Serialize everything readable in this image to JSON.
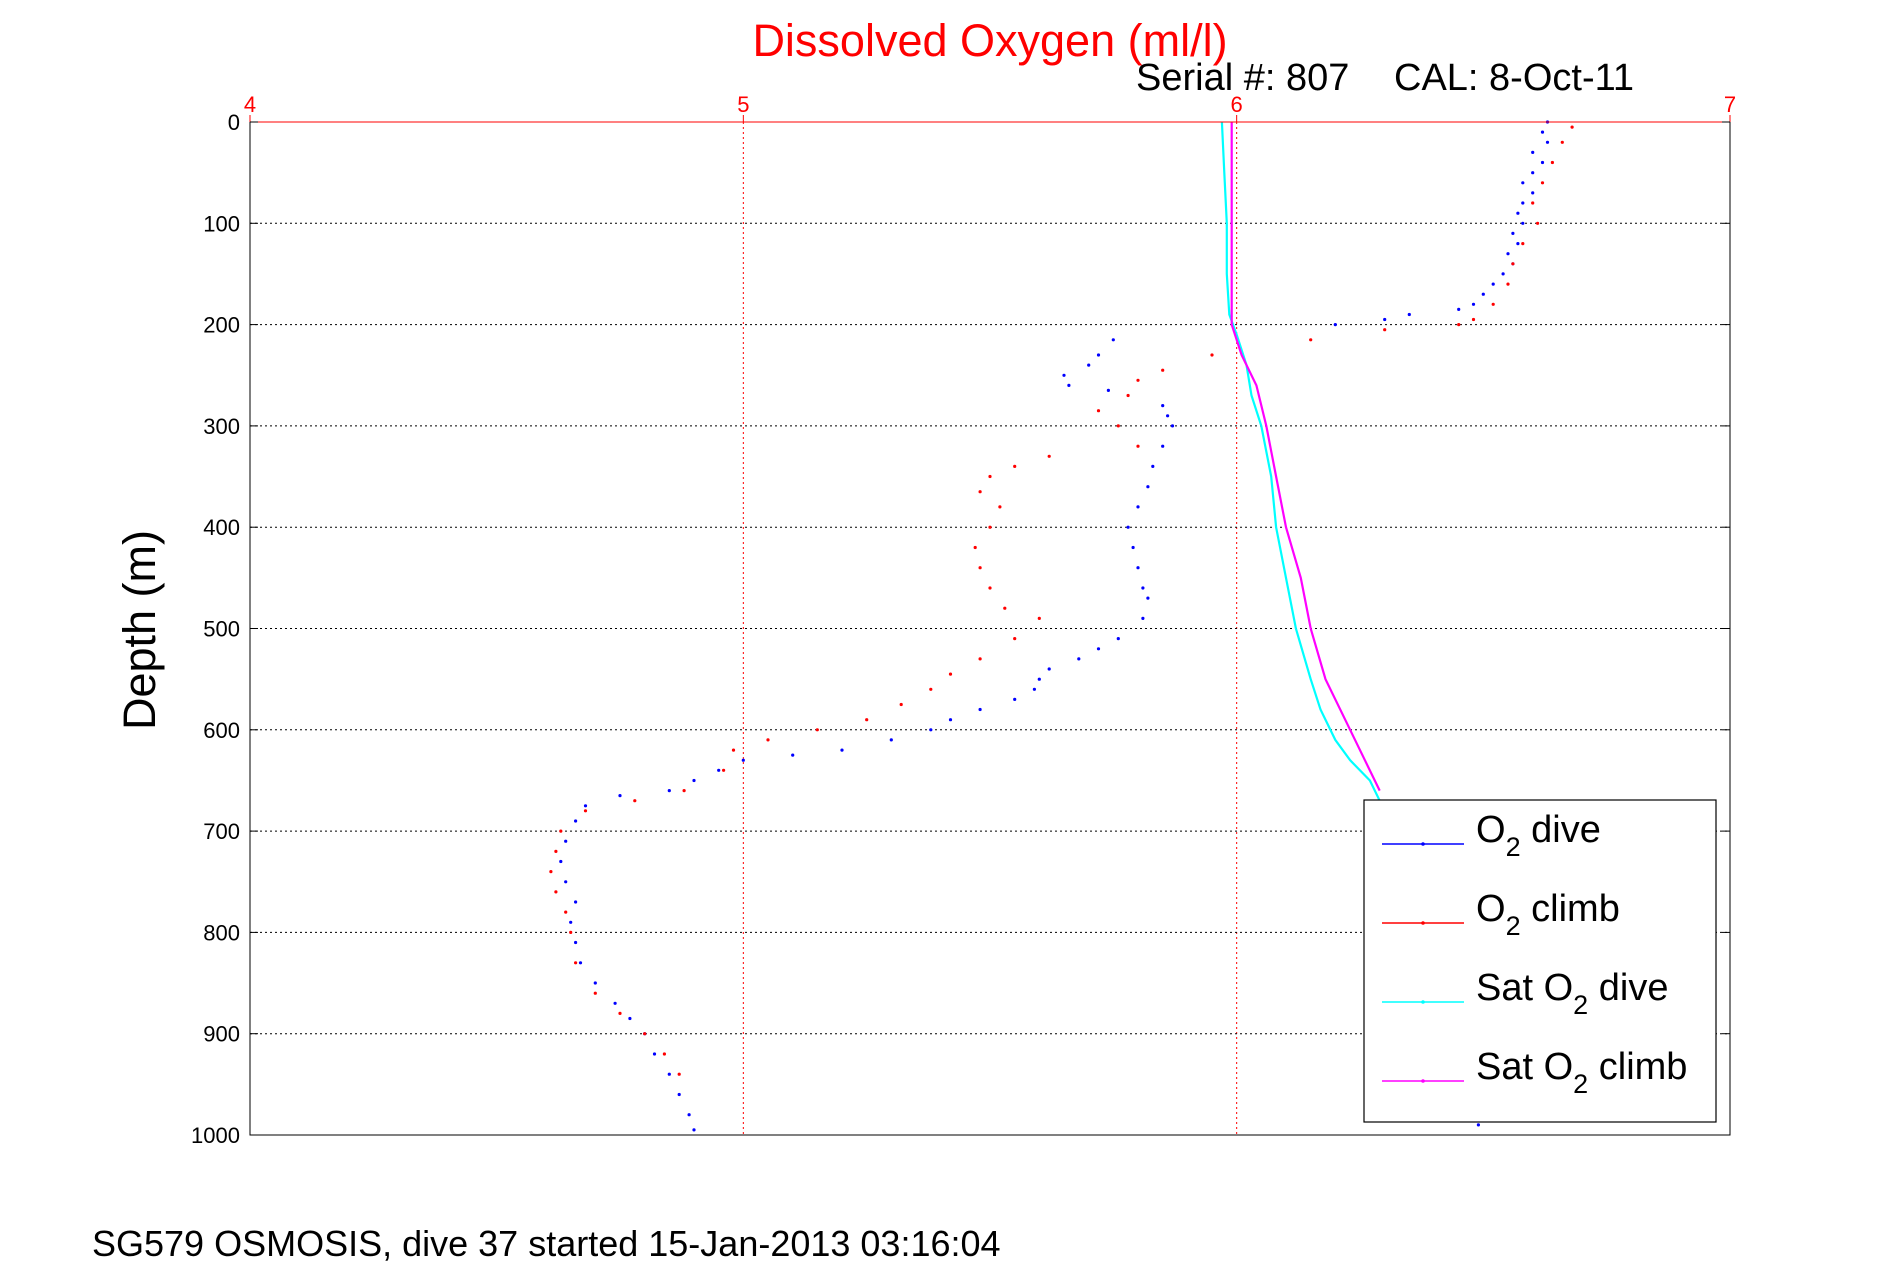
{
  "chart_data": {
    "type": "scatter",
    "title": "Dissolved Oxygen (ml/l)",
    "serial": "Serial #: 807",
    "cal": "CAL: 8-Oct-11",
    "ylabel": "Depth (m)",
    "footer": "SG579 OSMOSIS, dive 37 started 15-Jan-2013 03:16:04",
    "xlim": [
      4,
      7
    ],
    "ylim": [
      0,
      1000
    ],
    "y_reversed": true,
    "x_axis_position": "top",
    "x_ticks": [
      4,
      5,
      6,
      7
    ],
    "x_tick_labels": [
      "4",
      "5",
      "6",
      "7"
    ],
    "y_ticks": [
      0,
      100,
      200,
      300,
      400,
      500,
      600,
      700,
      800,
      900,
      1000
    ],
    "y_tick_labels": [
      "0",
      "100",
      "200",
      "300",
      "400",
      "500",
      "600",
      "700",
      "800",
      "900",
      "1000"
    ],
    "grid": true,
    "legend_position": "bottom-right",
    "series": [
      {
        "name": "O2 dive",
        "legend_main": "O",
        "legend_sub": "2",
        "legend_rest": " dive",
        "color": "#0000ff",
        "style": "markers",
        "points": [
          [
            6.63,
            0
          ],
          [
            6.62,
            10
          ],
          [
            6.63,
            20
          ],
          [
            6.6,
            30
          ],
          [
            6.62,
            40
          ],
          [
            6.6,
            50
          ],
          [
            6.58,
            60
          ],
          [
            6.6,
            70
          ],
          [
            6.58,
            80
          ],
          [
            6.57,
            90
          ],
          [
            6.58,
            100
          ],
          [
            6.56,
            110
          ],
          [
            6.57,
            120
          ],
          [
            6.55,
            130
          ],
          [
            6.56,
            140
          ],
          [
            6.54,
            150
          ],
          [
            6.52,
            160
          ],
          [
            6.5,
            170
          ],
          [
            6.48,
            180
          ],
          [
            6.45,
            185
          ],
          [
            6.35,
            190
          ],
          [
            6.3,
            195
          ],
          [
            6.2,
            200
          ],
          [
            5.75,
            215
          ],
          [
            5.72,
            230
          ],
          [
            5.7,
            240
          ],
          [
            5.65,
            250
          ],
          [
            5.66,
            260
          ],
          [
            5.74,
            265
          ],
          [
            5.85,
            280
          ],
          [
            5.86,
            290
          ],
          [
            5.87,
            300
          ],
          [
            5.85,
            320
          ],
          [
            5.83,
            340
          ],
          [
            5.82,
            360
          ],
          [
            5.8,
            380
          ],
          [
            5.78,
            400
          ],
          [
            5.79,
            420
          ],
          [
            5.8,
            440
          ],
          [
            5.81,
            460
          ],
          [
            5.82,
            470
          ],
          [
            5.81,
            490
          ],
          [
            5.76,
            510
          ],
          [
            5.72,
            520
          ],
          [
            5.68,
            530
          ],
          [
            5.62,
            540
          ],
          [
            5.6,
            550
          ],
          [
            5.59,
            560
          ],
          [
            5.55,
            570
          ],
          [
            5.48,
            580
          ],
          [
            5.42,
            590
          ],
          [
            5.38,
            600
          ],
          [
            5.3,
            610
          ],
          [
            5.2,
            620
          ],
          [
            5.1,
            625
          ],
          [
            5.0,
            630
          ],
          [
            4.95,
            640
          ],
          [
            4.9,
            650
          ],
          [
            4.85,
            660
          ],
          [
            4.75,
            665
          ],
          [
            4.68,
            675
          ],
          [
            4.66,
            690
          ],
          [
            4.64,
            710
          ],
          [
            4.63,
            730
          ],
          [
            4.64,
            750
          ],
          [
            4.66,
            770
          ],
          [
            4.65,
            790
          ],
          [
            4.66,
            810
          ],
          [
            4.67,
            830
          ],
          [
            4.7,
            850
          ],
          [
            4.74,
            870
          ],
          [
            4.77,
            885
          ],
          [
            4.8,
            900
          ],
          [
            4.82,
            920
          ],
          [
            4.85,
            940
          ],
          [
            4.87,
            960
          ],
          [
            4.89,
            980
          ],
          [
            4.9,
            995
          ],
          [
            6.49,
            990
          ]
        ]
      },
      {
        "name": "O2 climb",
        "legend_main": "O",
        "legend_sub": "2",
        "legend_rest": " climb",
        "color": "#ff0000",
        "style": "markers",
        "points": [
          [
            6.68,
            5
          ],
          [
            6.66,
            20
          ],
          [
            6.64,
            40
          ],
          [
            6.62,
            60
          ],
          [
            6.6,
            80
          ],
          [
            6.61,
            100
          ],
          [
            6.58,
            120
          ],
          [
            6.56,
            140
          ],
          [
            6.55,
            160
          ],
          [
            6.52,
            180
          ],
          [
            6.48,
            195
          ],
          [
            6.45,
            200
          ],
          [
            6.3,
            205
          ],
          [
            6.15,
            215
          ],
          [
            5.95,
            230
          ],
          [
            5.85,
            245
          ],
          [
            5.8,
            255
          ],
          [
            5.78,
            270
          ],
          [
            5.72,
            285
          ],
          [
            5.76,
            300
          ],
          [
            5.8,
            320
          ],
          [
            5.62,
            330
          ],
          [
            5.55,
            340
          ],
          [
            5.5,
            350
          ],
          [
            5.48,
            365
          ],
          [
            5.52,
            380
          ],
          [
            5.5,
            400
          ],
          [
            5.47,
            420
          ],
          [
            5.48,
            440
          ],
          [
            5.5,
            460
          ],
          [
            5.53,
            480
          ],
          [
            5.6,
            490
          ],
          [
            5.55,
            510
          ],
          [
            5.48,
            530
          ],
          [
            5.42,
            545
          ],
          [
            5.38,
            560
          ],
          [
            5.32,
            575
          ],
          [
            5.25,
            590
          ],
          [
            5.15,
            600
          ],
          [
            5.05,
            610
          ],
          [
            4.98,
            620
          ],
          [
            4.96,
            640
          ],
          [
            4.88,
            660
          ],
          [
            4.78,
            670
          ],
          [
            4.68,
            680
          ],
          [
            4.63,
            700
          ],
          [
            4.62,
            720
          ],
          [
            4.61,
            740
          ],
          [
            4.62,
            760
          ],
          [
            4.64,
            780
          ],
          [
            4.65,
            800
          ],
          [
            4.66,
            830
          ],
          [
            4.7,
            860
          ],
          [
            4.75,
            880
          ],
          [
            4.8,
            900
          ],
          [
            4.84,
            920
          ],
          [
            4.87,
            940
          ]
        ]
      },
      {
        "name": "Sat O2 dive",
        "legend_main": "Sat O",
        "legend_sub": "2",
        "legend_rest": " dive",
        "color": "#00ffff",
        "style": "line",
        "points": [
          [
            5.97,
            0
          ],
          [
            5.975,
            50
          ],
          [
            5.98,
            100
          ],
          [
            5.98,
            150
          ],
          [
            5.985,
            190
          ],
          [
            6.0,
            210
          ],
          [
            6.02,
            240
          ],
          [
            6.03,
            270
          ],
          [
            6.05,
            300
          ],
          [
            6.07,
            350
          ],
          [
            6.08,
            400
          ],
          [
            6.1,
            450
          ],
          [
            6.12,
            500
          ],
          [
            6.15,
            550
          ],
          [
            6.17,
            580
          ],
          [
            6.2,
            610
          ],
          [
            6.23,
            630
          ],
          [
            6.27,
            650
          ],
          [
            6.29,
            670
          ]
        ]
      },
      {
        "name": "Sat O2 climb",
        "legend_main": "Sat O",
        "legend_sub": "2",
        "legend_rest": " climb",
        "color": "#ff00ff",
        "style": "line",
        "points": [
          [
            5.99,
            0
          ],
          [
            5.99,
            50
          ],
          [
            5.99,
            100
          ],
          [
            5.99,
            150
          ],
          [
            5.99,
            200
          ],
          [
            6.01,
            230
          ],
          [
            6.04,
            260
          ],
          [
            6.06,
            300
          ],
          [
            6.08,
            350
          ],
          [
            6.1,
            400
          ],
          [
            6.13,
            450
          ],
          [
            6.15,
            500
          ],
          [
            6.18,
            550
          ],
          [
            6.22,
            590
          ],
          [
            6.26,
            630
          ],
          [
            6.29,
            660
          ]
        ]
      }
    ]
  }
}
